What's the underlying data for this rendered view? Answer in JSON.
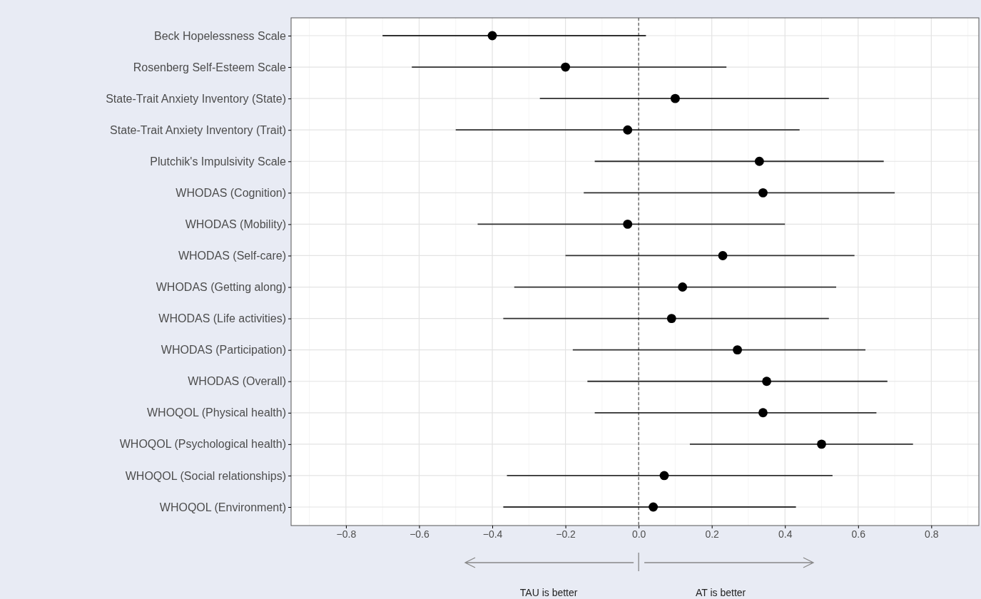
{
  "chart_data": {
    "type": "scatter",
    "orientation": "horizontal",
    "categories": [
      "Beck Hopelessness Scale",
      "Rosenberg Self-Esteem Scale",
      "State-Trait Anxiety Inventory (State)",
      "State-Trait Anxiety Inventory (Trait)",
      "Plutchik's Impulsivity Scale",
      "WHODAS (Cognition)",
      "WHODAS (Mobility)",
      "WHODAS (Self-care)",
      "WHODAS (Getting along)",
      "WHODAS (Life activities)",
      "WHODAS (Participation)",
      "WHODAS (Overall)",
      "WHOQOL (Physical health)",
      "WHOQOL (Psychological health)",
      "WHOQOL (Social relationships)",
      "WHOQOL (Environment)"
    ],
    "values": [
      -0.4,
      -0.2,
      0.1,
      -0.03,
      0.33,
      0.34,
      -0.03,
      0.23,
      0.12,
      0.09,
      0.27,
      0.35,
      0.34,
      0.5,
      0.07,
      0.04
    ],
    "errors": [
      [
        -0.7,
        0.02
      ],
      [
        -0.62,
        0.24
      ],
      [
        -0.27,
        0.52
      ],
      [
        -0.5,
        0.44
      ],
      [
        -0.12,
        0.67
      ],
      [
        -0.15,
        0.7
      ],
      [
        -0.44,
        0.4
      ],
      [
        -0.2,
        0.59
      ],
      [
        -0.34,
        0.54
      ],
      [
        -0.37,
        0.52
      ],
      [
        -0.18,
        0.62
      ],
      [
        -0.14,
        0.68
      ],
      [
        -0.12,
        0.65
      ],
      [
        0.14,
        0.75
      ],
      [
        -0.36,
        0.53
      ],
      [
        -0.37,
        0.43
      ]
    ],
    "color": "#000000",
    "marker": "circle",
    "xlim": [
      -0.95,
      0.93
    ],
    "xticks": [
      -0.8,
      -0.6,
      -0.4,
      -0.2,
      {
        "value": 0,
        "label": "0.0"
      },
      0.2,
      0.4,
      0.6,
      0.8
    ],
    "grid": true,
    "ref_lines": [
      {
        "axis": "x",
        "value": 0,
        "line_style": "dashed",
        "color": "#333333"
      }
    ],
    "annotations": [
      "TAU is better",
      "AT is better"
    ]
  }
}
